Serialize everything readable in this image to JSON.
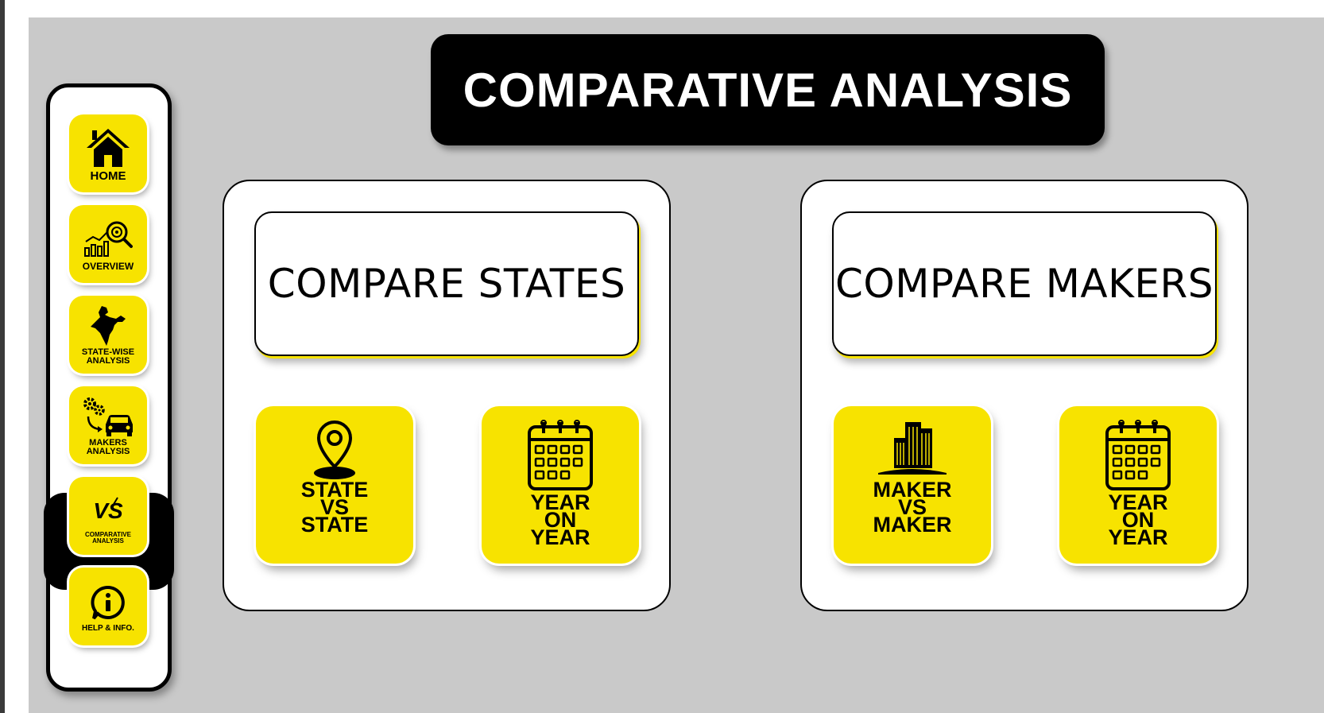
{
  "title": "COMPARATIVE ANALYSIS",
  "sidebar": {
    "items": [
      {
        "label": "HOME",
        "icon": "home-icon"
      },
      {
        "label": "OVERVIEW",
        "icon": "chart-search-icon"
      },
      {
        "label": "STATE-WISE\nANALYSIS",
        "icon": "india-map-icon"
      },
      {
        "label": "MAKERS\nANALYSIS",
        "icon": "gears-car-icon"
      },
      {
        "label": "COMPARATIVE\nANALYSIS",
        "icon": "versus-icon",
        "icon_text": "VS",
        "active": true
      },
      {
        "label": "HELP & INFO.",
        "icon": "info-chat-icon"
      }
    ]
  },
  "panels": [
    {
      "header": "COMPARE STATES",
      "cards": [
        {
          "label": "STATE\nVS\nSTATE",
          "icon": "location-pin-icon"
        },
        {
          "label": "YEAR\nON\nYEAR",
          "icon": "calendar-icon"
        }
      ]
    },
    {
      "header": "COMPARE MAKERS",
      "cards": [
        {
          "label": "MAKER\nVS\nMAKER",
          "icon": "building-icon"
        },
        {
          "label": "YEAR\nON\nYEAR",
          "icon": "calendar-icon"
        }
      ]
    }
  ],
  "colors": {
    "accent": "#f7e300",
    "background": "#c9c9c9",
    "title_bg": "#000000",
    "panel_bg": "#ffffff"
  }
}
